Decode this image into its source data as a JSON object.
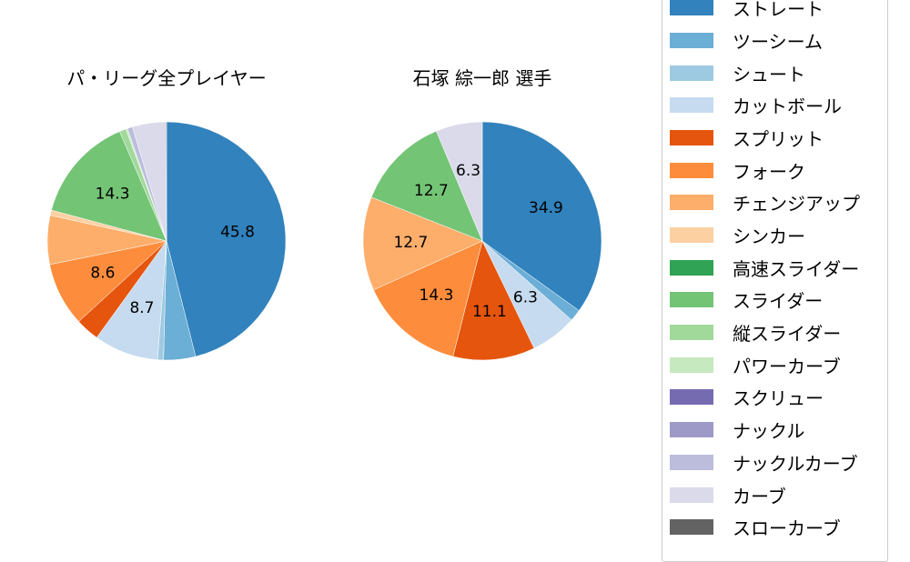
{
  "chart_data": [
    {
      "type": "pie",
      "title": "パ・リーグ全プレイヤー",
      "center": [
        183,
        265
      ],
      "radius": 131,
      "start_angle": 90,
      "direction": "clockwise",
      "slices": [
        {
          "name": "ストレート",
          "value": 45.8,
          "label": "45.8"
        },
        {
          "name": "ツーシーム",
          "value": 4.3,
          "label": ""
        },
        {
          "name": "シュート",
          "value": 0.8,
          "label": ""
        },
        {
          "name": "カットボール",
          "value": 8.7,
          "label": "8.7"
        },
        {
          "name": "スプリット",
          "value": 3.2,
          "label": ""
        },
        {
          "name": "フォーク",
          "value": 8.6,
          "label": "8.6"
        },
        {
          "name": "チェンジアップ",
          "value": 6.6,
          "label": ""
        },
        {
          "name": "シンカー",
          "value": 0.7,
          "label": ""
        },
        {
          "name": "高速スライダー",
          "value": 0.0,
          "label": ""
        },
        {
          "name": "スライダー",
          "value": 14.3,
          "label": "14.3"
        },
        {
          "name": "縦スライダー",
          "value": 0.9,
          "label": ""
        },
        {
          "name": "パワーカーブ",
          "value": 0.2,
          "label": ""
        },
        {
          "name": "スクリュー",
          "value": 0.0,
          "label": ""
        },
        {
          "name": "ナックル",
          "value": 0.0,
          "label": ""
        },
        {
          "name": "ナックルカーブ",
          "value": 0.7,
          "label": ""
        },
        {
          "name": "カーブ",
          "value": 4.5,
          "label": ""
        },
        {
          "name": "スローカーブ",
          "value": 0.1,
          "label": ""
        }
      ]
    },
    {
      "type": "pie",
      "title": "石塚 綜一郎  選手",
      "center": [
        530,
        265
      ],
      "radius": 131,
      "start_angle": 90,
      "direction": "clockwise",
      "slices": [
        {
          "name": "ストレート",
          "value": 34.9,
          "label": "34.9"
        },
        {
          "name": "ツーシーム",
          "value": 1.6,
          "label": ""
        },
        {
          "name": "シュート",
          "value": 0.0,
          "label": ""
        },
        {
          "name": "カットボール",
          "value": 6.3,
          "label": "6.3"
        },
        {
          "name": "スプリット",
          "value": 11.1,
          "label": "11.1"
        },
        {
          "name": "フォーク",
          "value": 14.3,
          "label": "14.3"
        },
        {
          "name": "チェンジアップ",
          "value": 12.7,
          "label": "12.7"
        },
        {
          "name": "シンカー",
          "value": 0.0,
          "label": ""
        },
        {
          "name": "高速スライダー",
          "value": 0.0,
          "label": ""
        },
        {
          "name": "スライダー",
          "value": 12.7,
          "label": "12.7"
        },
        {
          "name": "縦スライダー",
          "value": 0.0,
          "label": ""
        },
        {
          "name": "パワーカーブ",
          "value": 0.0,
          "label": ""
        },
        {
          "name": "スクリュー",
          "value": 0.0,
          "label": ""
        },
        {
          "name": "ナックル",
          "value": 0.0,
          "label": ""
        },
        {
          "name": "ナックルカーブ",
          "value": 0.0,
          "label": ""
        },
        {
          "name": "カーブ",
          "value": 6.3,
          "label": "6.3"
        },
        {
          "name": "スローカーブ",
          "value": 0.0,
          "label": ""
        }
      ]
    }
  ],
  "titles": {
    "left": "パ・リーグ全プレイヤー",
    "right": "石塚 綜一郎  選手"
  },
  "legend": {
    "items": [
      {
        "label": "ストレート",
        "color": "#3182bd"
      },
      {
        "label": "ツーシーム",
        "color": "#6baed6"
      },
      {
        "label": "シュート",
        "color": "#9ecae1"
      },
      {
        "label": "カットボール",
        "color": "#c6dbef"
      },
      {
        "label": "スプリット",
        "color": "#e6550d"
      },
      {
        "label": "フォーク",
        "color": "#fd8d3c"
      },
      {
        "label": "チェンジアップ",
        "color": "#fdae6b"
      },
      {
        "label": "シンカー",
        "color": "#fdd0a2"
      },
      {
        "label": "高速スライダー",
        "color": "#31a354"
      },
      {
        "label": "スライダー",
        "color": "#74c476"
      },
      {
        "label": "縦スライダー",
        "color": "#a1d99b"
      },
      {
        "label": "パワーカーブ",
        "color": "#c7e9c0"
      },
      {
        "label": "スクリュー",
        "color": "#756bb1"
      },
      {
        "label": "ナックル",
        "color": "#9e9ac8"
      },
      {
        "label": "ナックルカーブ",
        "color": "#bcbddc"
      },
      {
        "label": "カーブ",
        "color": "#dadaeb"
      },
      {
        "label": "スローカーブ",
        "color": "#636363"
      }
    ]
  }
}
